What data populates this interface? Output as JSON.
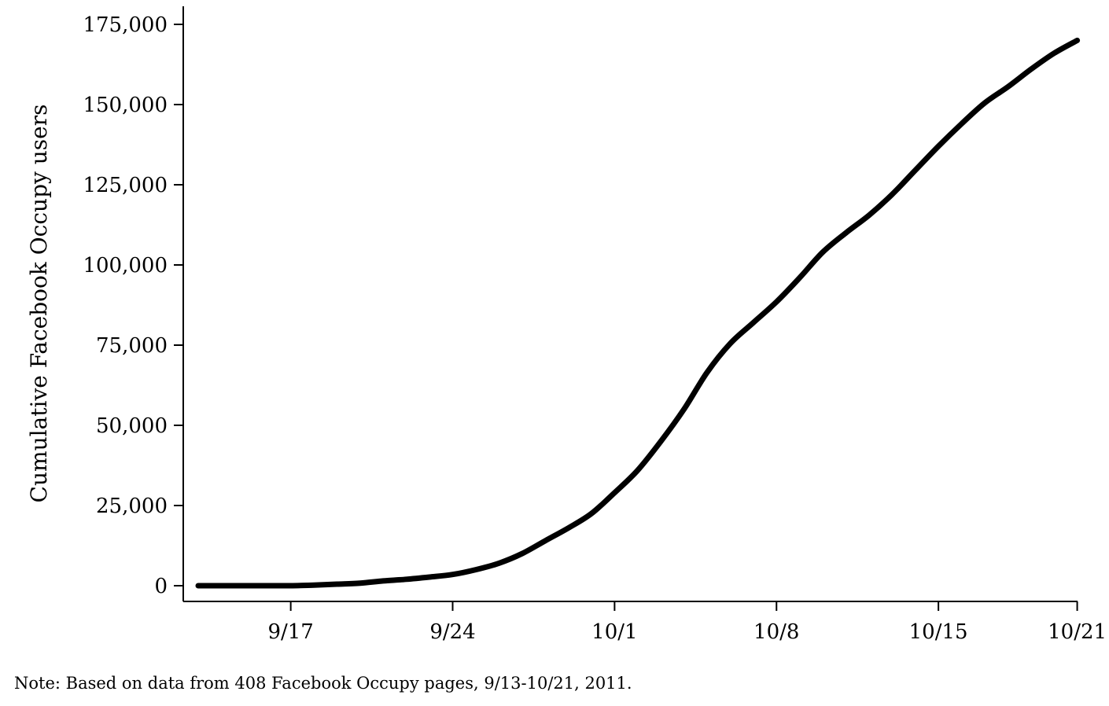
{
  "chart_data": {
    "type": "line",
    "title": "",
    "xlabel": "",
    "ylabel": "Cumulative Facebook Occupy users",
    "note": "Note: Based on data from 408 Facebook Occupy pages, 9/13-10/21, 2011.",
    "x_ticks": [
      {
        "label": "9/17",
        "value": "2011-09-17"
      },
      {
        "label": "9/24",
        "value": "2011-09-24"
      },
      {
        "label": "10/1",
        "value": "2011-10-01"
      },
      {
        "label": "10/8",
        "value": "2011-10-08"
      },
      {
        "label": "10/15",
        "value": "2011-10-15"
      },
      {
        "label": "10/21",
        "value": "2011-10-21"
      }
    ],
    "y_ticks": [
      0,
      25000,
      50000,
      75000,
      100000,
      125000,
      150000,
      175000
    ],
    "y_tick_labels": [
      "0",
      "25,000",
      "50,000",
      "75,000",
      "100,000",
      "125,000",
      "150,000",
      "175,000"
    ],
    "ylim": [
      0,
      175000
    ],
    "xlim": [
      "2011-09-13",
      "2011-10-21"
    ],
    "grid": false,
    "line_color": "#000000",
    "series": [
      {
        "x": [
          "2011-09-13",
          "2011-09-14",
          "2011-09-15",
          "2011-09-16",
          "2011-09-17",
          "2011-09-18",
          "2011-09-19",
          "2011-09-20",
          "2011-09-21",
          "2011-09-22",
          "2011-09-23",
          "2011-09-24",
          "2011-09-25",
          "2011-09-26",
          "2011-09-27",
          "2011-09-28",
          "2011-09-29",
          "2011-09-30",
          "2011-10-01",
          "2011-10-02",
          "2011-10-03",
          "2011-10-04",
          "2011-10-05",
          "2011-10-06",
          "2011-10-07",
          "2011-10-08",
          "2011-10-09",
          "2011-10-10",
          "2011-10-11",
          "2011-10-12",
          "2011-10-13",
          "2011-10-14",
          "2011-10-15",
          "2011-10-16",
          "2011-10-17",
          "2011-10-18",
          "2011-10-19",
          "2011-10-20",
          "2011-10-21"
        ],
        "values": [
          0,
          0,
          0,
          0,
          0,
          200,
          500,
          800,
          1500,
          2000,
          2700,
          3500,
          5000,
          7000,
          10000,
          14000,
          18000,
          22500,
          29000,
          36000,
          45000,
          55000,
          66500,
          75500,
          82000,
          88500,
          96000,
          104000,
          110000,
          115500,
          122000,
          129500,
          137000,
          144000,
          150500,
          155500,
          161000,
          166000,
          170000
        ]
      }
    ]
  }
}
